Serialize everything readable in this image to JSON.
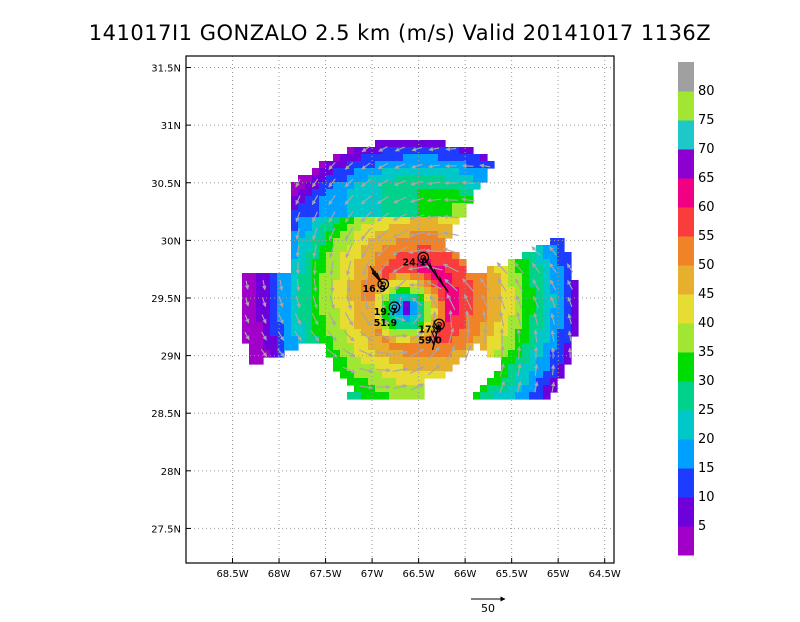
{
  "chart_data": {
    "type": "heatmap",
    "title": "141017I1 GONZALO 2.5 km (m/s) Valid 20141017 1136Z",
    "x_ticks": [
      "68.5W",
      "68W",
      "67.5W",
      "67W",
      "66.5W",
      "66W",
      "65.5W",
      "65W",
      "64.5W"
    ],
    "x_tick_values": [
      -68.5,
      -68.0,
      -67.5,
      -67.0,
      -66.5,
      -66.0,
      -65.5,
      -65.0,
      -64.5
    ],
    "y_ticks": [
      "27.5N",
      "28N",
      "28.5N",
      "29N",
      "29.5N",
      "30N",
      "30.5N",
      "31N",
      "31.5N"
    ],
    "y_tick_values": [
      27.5,
      28.0,
      28.5,
      29.0,
      29.5,
      30.0,
      30.5,
      31.0,
      31.5
    ],
    "xlim": [
      -69.0,
      -64.4
    ],
    "ylim": [
      27.2,
      31.6
    ],
    "grid": true,
    "colorbar": {
      "labels": [
        "5",
        "10",
        "15",
        "20",
        "25",
        "30",
        "35",
        "40",
        "45",
        "50",
        "55",
        "60",
        "65",
        "70",
        "75",
        "80"
      ],
      "colors": [
        "#a000c8",
        "#6e00dc",
        "#1e3cff",
        "#00a0ff",
        "#00c8c8",
        "#00d28c",
        "#00dc00",
        "#a0e632",
        "#e6dc32",
        "#e6af2d",
        "#f08228",
        "#fa3c3c",
        "#f00082",
        "#8c00d0",
        "#1ec8c8",
        "#a0e632",
        "#a0a0a0"
      ]
    },
    "storm_center": {
      "lon": -66.6,
      "lat": 29.42
    },
    "observations": [
      {
        "lon": -66.45,
        "lat": 29.85,
        "label": "24.1"
      },
      {
        "lon": -66.88,
        "lat": 29.62,
        "label": "16.9"
      },
      {
        "lon": -66.76,
        "lat": 29.42,
        "label": "19.7"
      },
      {
        "lon": -66.76,
        "lat": 29.42,
        "label": "51.9"
      },
      {
        "lon": -66.28,
        "lat": 29.27,
        "label": "17.9"
      },
      {
        "lon": -66.28,
        "lat": 29.27,
        "label": "59.0"
      }
    ],
    "vector_legend": "50"
  }
}
